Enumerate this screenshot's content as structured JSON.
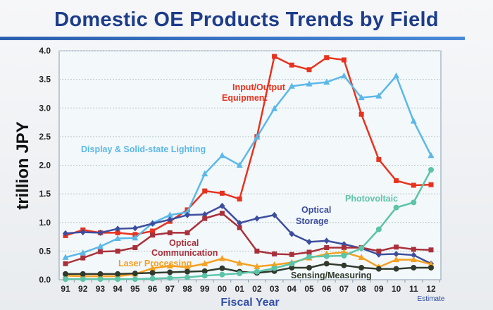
{
  "title": "Domestic OE Products Trends by Field",
  "chart_data": {
    "type": "line",
    "title": "Domestic OE Products Trends by Field",
    "xlabel": "Fiscal Year",
    "ylabel": "trillion JPY",
    "x_note": "Estimate",
    "categories": [
      "91",
      "92",
      "93",
      "94",
      "95",
      "96",
      "97",
      "98",
      "99",
      "00",
      "01",
      "02",
      "03",
      "04",
      "05",
      "06",
      "07",
      "08",
      "09",
      "10",
      "11",
      "12"
    ],
    "ylim": [
      0,
      4.0
    ],
    "yticks": [
      "0.0",
      "0.5",
      "1.0",
      "1.5",
      "2.0",
      "2.5",
      "3.0",
      "3.5",
      "4.0"
    ],
    "grid": true,
    "series": [
      {
        "name": "Input/Output Equipment",
        "label_lines": [
          "Input/Output",
          "Equipment"
        ],
        "color": "#e8321e",
        "marker": "square",
        "values": [
          0.77,
          0.87,
          0.82,
          0.82,
          0.79,
          0.85,
          1.02,
          1.22,
          1.55,
          1.51,
          1.41,
          2.5,
          3.9,
          3.75,
          3.67,
          3.88,
          3.84,
          2.89,
          2.1,
          1.73,
          1.65,
          1.66
        ]
      },
      {
        "name": "Display & Solid-state Lighting",
        "label_lines": [
          "Display & Solid-state Lighting"
        ],
        "color": "#5bb8e8",
        "marker": "triangle",
        "values": [
          0.39,
          0.47,
          0.58,
          0.72,
          0.73,
          0.99,
          1.13,
          1.18,
          1.85,
          2.17,
          2.0,
          2.49,
          2.99,
          3.38,
          3.42,
          3.45,
          3.56,
          3.18,
          3.21,
          3.56,
          2.77,
          2.17
        ]
      },
      {
        "name": "Optical Storage",
        "label_lines": [
          "Optical",
          "Storage"
        ],
        "color": "#3d4d9e",
        "marker": "diamond",
        "values": [
          0.81,
          0.83,
          0.82,
          0.89,
          0.9,
          0.98,
          1.05,
          1.13,
          1.14,
          1.29,
          0.99,
          1.07,
          1.13,
          0.8,
          0.66,
          0.68,
          0.62,
          0.55,
          0.44,
          0.45,
          0.43,
          0.28
        ]
      },
      {
        "name": "Optical Communication",
        "label_lines": [
          "Optical",
          "Communication"
        ],
        "color": "#a8303a",
        "marker": "square",
        "values": [
          0.28,
          0.38,
          0.49,
          0.5,
          0.56,
          0.78,
          0.82,
          0.82,
          1.07,
          1.16,
          0.91,
          0.5,
          0.45,
          0.44,
          0.48,
          0.56,
          0.56,
          0.56,
          0.5,
          0.57,
          0.53,
          0.52
        ]
      },
      {
        "name": "Laser Processing",
        "label_lines": [
          "Laser Processing"
        ],
        "color": "#f5a020",
        "marker": "triangle",
        "values": [
          0.07,
          0.06,
          0.06,
          0.06,
          0.1,
          0.2,
          0.24,
          0.22,
          0.28,
          0.37,
          0.29,
          0.23,
          0.26,
          0.3,
          0.38,
          0.45,
          0.48,
          0.39,
          0.22,
          0.35,
          0.35,
          0.27
        ]
      },
      {
        "name": "Sensing/Measuring",
        "label_lines": [
          "Sensing/Measuring"
        ],
        "color": "#2f3a2c",
        "marker": "circle",
        "values": [
          0.1,
          0.1,
          0.1,
          0.1,
          0.11,
          0.12,
          0.13,
          0.14,
          0.15,
          0.2,
          0.14,
          0.12,
          0.15,
          0.21,
          0.21,
          0.28,
          0.25,
          0.21,
          0.19,
          0.19,
          0.21,
          0.21
        ]
      },
      {
        "name": "Photovoltaic",
        "label_lines": [
          "Photovoltaic"
        ],
        "color": "#5cc4a8",
        "marker": "circle",
        "values": [
          0.01,
          0.01,
          0.01,
          0.01,
          0.01,
          0.02,
          0.03,
          0.04,
          0.07,
          0.09,
          0.11,
          0.14,
          0.2,
          0.28,
          0.4,
          0.41,
          0.42,
          0.55,
          0.88,
          1.26,
          1.35,
          1.92
        ]
      }
    ]
  }
}
